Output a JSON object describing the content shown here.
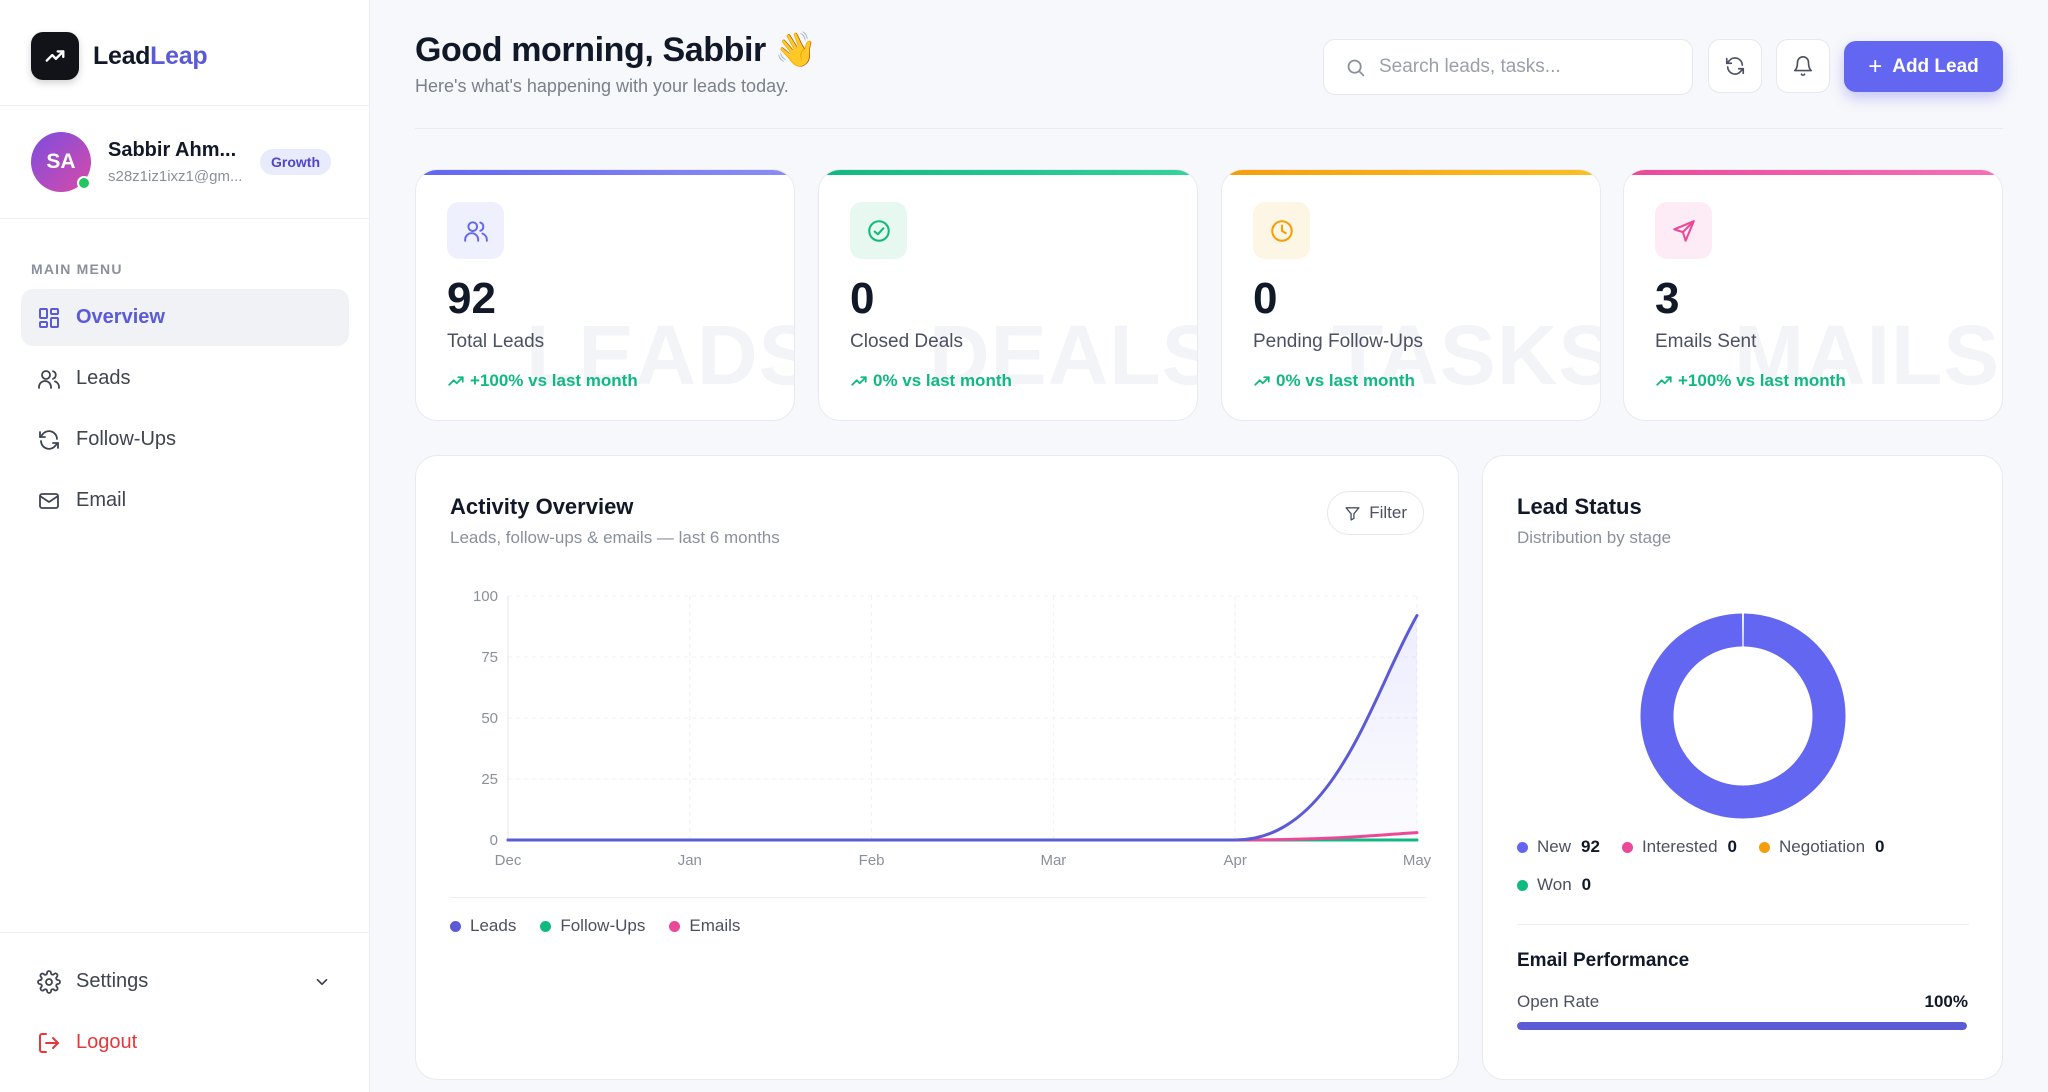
{
  "brand": {
    "name_part1": "Lead",
    "name_part2": "Leap",
    "icon": "trending-up-icon"
  },
  "user": {
    "initials": "SA",
    "name": "Sabbir Ahm...",
    "email": "s28z1iz1ixz1@gm...",
    "plan": "Growth",
    "online": true
  },
  "sidebar": {
    "menu_title": "MAIN MENU",
    "items": [
      {
        "label": "Overview",
        "icon": "grid-icon",
        "active": true
      },
      {
        "label": "Leads",
        "icon": "users-icon",
        "active": false
      },
      {
        "label": "Follow-Ups",
        "icon": "refresh-icon",
        "active": false
      },
      {
        "label": "Email",
        "icon": "mail-icon",
        "active": false
      }
    ],
    "settings_label": "Settings",
    "logout_label": "Logout"
  },
  "header": {
    "greeting": "Good morning, Sabbir 👋",
    "subtitle": "Here's what's happening with your leads today.",
    "search_placeholder": "Search leads, tasks...",
    "add_button": "Add Lead"
  },
  "stats": [
    {
      "value": "92",
      "label": "Total Leads",
      "trend": "+100% vs last month",
      "watermark": "LEADS",
      "accent": "#6366f1",
      "icon": "users-icon"
    },
    {
      "value": "0",
      "label": "Closed Deals",
      "trend": "0% vs last month",
      "watermark": "DEALS",
      "accent": "#10b981",
      "icon": "check-circle-icon"
    },
    {
      "value": "0",
      "label": "Pending Follow-Ups",
      "trend": "0% vs last month",
      "watermark": "TASKS",
      "accent": "#f59e0b",
      "icon": "clock-icon"
    },
    {
      "value": "3",
      "label": "Emails Sent",
      "trend": "+100% vs last month",
      "watermark": "MAILS",
      "accent": "#ec4899",
      "icon": "send-icon"
    }
  ],
  "activity": {
    "title": "Activity Overview",
    "subtitle": "Leads, follow-ups & emails — last 6 months",
    "filter_label": "Filter"
  },
  "chart_data": {
    "type": "line",
    "categories": [
      "Dec",
      "Jan",
      "Feb",
      "Mar",
      "Apr",
      "May"
    ],
    "ylim": [
      0,
      100
    ],
    "yticks": [
      0,
      25,
      50,
      75,
      100
    ],
    "grid": true,
    "legend_position": "bottom-left",
    "series": [
      {
        "name": "Leads",
        "color": "#5b5bd6",
        "values": [
          0,
          0,
          0,
          0,
          0,
          92
        ]
      },
      {
        "name": "Follow-Ups",
        "color": "#10b981",
        "values": [
          0,
          0,
          0,
          0,
          0,
          0
        ]
      },
      {
        "name": "Emails",
        "color": "#ec4899",
        "values": [
          0,
          0,
          0,
          0,
          0,
          3
        ]
      }
    ]
  },
  "lead_status": {
    "title": "Lead Status",
    "subtitle": "Distribution by stage",
    "segments": [
      {
        "name": "New",
        "value": 92,
        "color": "#6366f1"
      },
      {
        "name": "Interested",
        "value": 0,
        "color": "#ec4899"
      },
      {
        "name": "Negotiation",
        "value": 0,
        "color": "#f59e0b"
      },
      {
        "name": "Won",
        "value": 0,
        "color": "#10b981"
      }
    ],
    "email_title": "Email Performance",
    "open_rate_label": "Open Rate",
    "open_rate_value": "100%",
    "open_rate_fraction": 1.0
  }
}
